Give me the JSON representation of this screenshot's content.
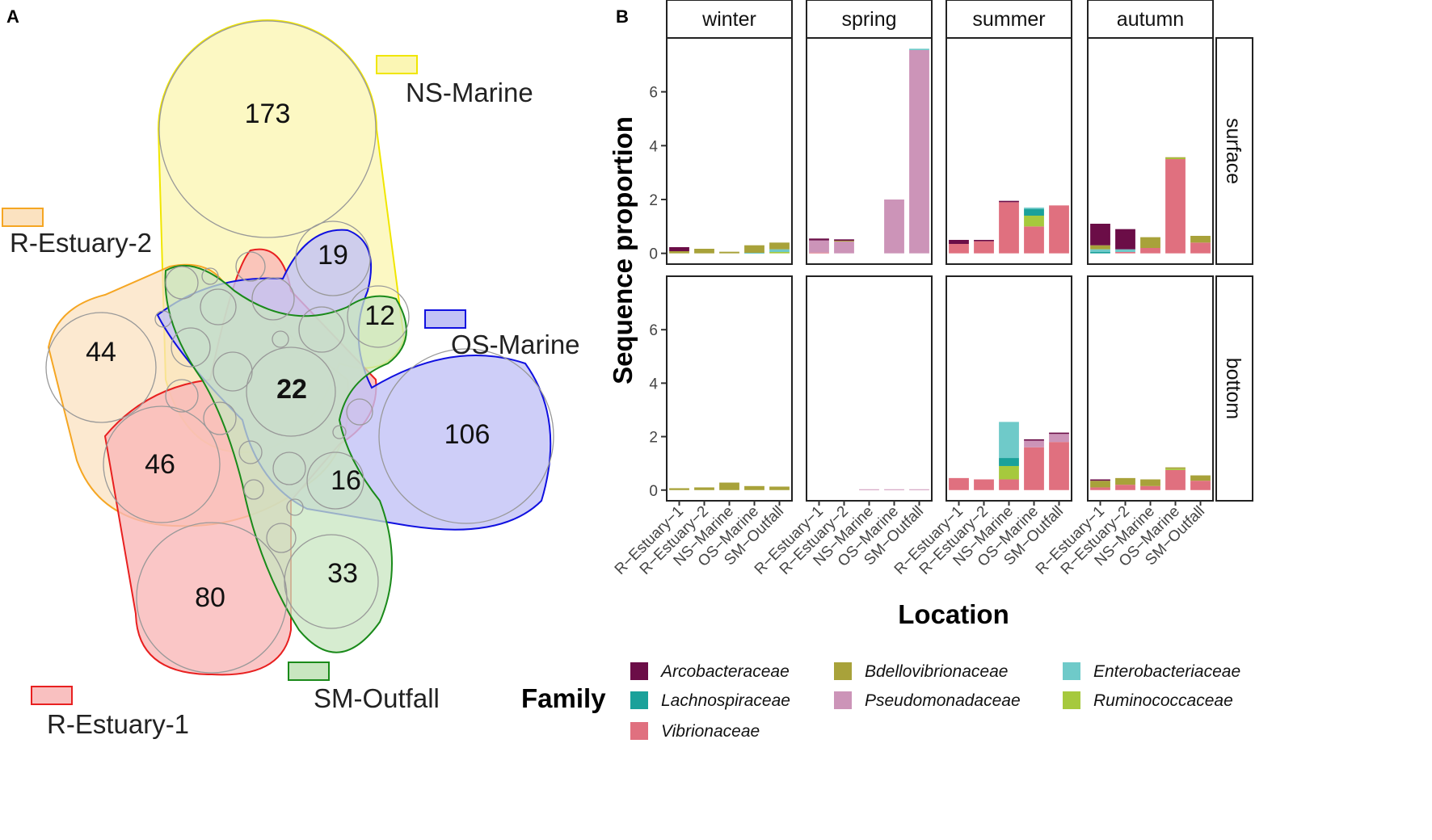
{
  "panel_a": {
    "tag": "A",
    "sets": [
      {
        "name": "NS-Marine",
        "color": "#f0e600",
        "fill": "#fbf6b4"
      },
      {
        "name": "R-Estuary-2",
        "color": "#f5a623",
        "fill": "#fbe2c0"
      },
      {
        "name": "OS-Marine",
        "color": "#1010e0",
        "fill": "#c2c2f6"
      },
      {
        "name": "SM-Outfall",
        "color": "#1a8a1a",
        "fill": "#c8e6c0"
      },
      {
        "name": "R-Estuary-1",
        "color": "#e82020",
        "fill": "#f9c0c0"
      }
    ],
    "counts": {
      "ns_only": "173",
      "re2_only": "44",
      "os_only": "106",
      "sm_only": "33",
      "re1_only": "80",
      "all": "22",
      "re1_re2": "46",
      "ns_os": "19",
      "sm_os_a": "12",
      "sm_os_b": "16"
    }
  },
  "chart_data": {
    "type": "bar",
    "stacked": true,
    "tag": "B",
    "xlabel": "Location",
    "ylabel": "Sequence proportion",
    "ylim": [
      -0.4,
      8.0
    ],
    "yticks": [
      0,
      2,
      4,
      6
    ],
    "facet_cols": [
      "winter",
      "spring",
      "summer",
      "autumn"
    ],
    "facet_rows": [
      "surface",
      "bottom"
    ],
    "categories": [
      "R−Estuary−1",
      "R−Estuary−2",
      "NS−Marine",
      "OS−Marine",
      "SM−Outfall"
    ],
    "legend_title": "Family",
    "families": [
      {
        "name": "Vibrionaceae",
        "color": "#e0707f"
      },
      {
        "name": "Ruminococcaceae",
        "color": "#a6c93d"
      },
      {
        "name": "Pseudomonadaceae",
        "color": "#cc94b8"
      },
      {
        "name": "Lachnospiraceae",
        "color": "#1aa19a"
      },
      {
        "name": "Enterobacteriaceae",
        "color": "#6fcac9"
      },
      {
        "name": "Bdellovibrionaceae",
        "color": "#a8a23a"
      },
      {
        "name": "Arcobacteraceae",
        "color": "#6b0d47"
      }
    ],
    "legend_order": [
      "Arcobacteraceae",
      "Bdellovibrionaceae",
      "Enterobacteriaceae",
      "Lachnospiraceae",
      "Pseudomonadaceae",
      "Ruminococcaceae",
      "Vibrionaceae"
    ],
    "values": {
      "surface": {
        "winter": {
          "Vibrionaceae": [
            0,
            0,
            0,
            0,
            0
          ],
          "Ruminococcaceae": [
            0,
            0,
            0,
            0,
            0.05
          ],
          "Pseudomonadaceae": [
            0,
            0,
            0,
            0,
            0
          ],
          "Lachnospiraceae": [
            0,
            0,
            0,
            0,
            0
          ],
          "Enterobacteriaceae": [
            0,
            0,
            0,
            0.02,
            0.1
          ],
          "Bdellovibrionaceae": [
            0.08,
            0.17,
            0.06,
            0.28,
            0.25
          ],
          "Arcobacteraceae": [
            0.15,
            0,
            0,
            0,
            0
          ]
        },
        "spring": {
          "Vibrionaceae": [
            0.03,
            0,
            0,
            0,
            0
          ],
          "Ruminococcaceae": [
            0,
            0,
            0,
            0,
            0
          ],
          "Pseudomonadaceae": [
            0.45,
            0.45,
            0,
            2.0,
            7.55
          ],
          "Lachnospiraceae": [
            0,
            0,
            0,
            0,
            0
          ],
          "Enterobacteriaceae": [
            0,
            0,
            0,
            0,
            0.05
          ],
          "Bdellovibrionaceae": [
            0,
            0.02,
            0,
            0,
            0
          ],
          "Arcobacteraceae": [
            0.07,
            0.05,
            0,
            0,
            0
          ]
        },
        "summer": {
          "Vibrionaceae": [
            0.35,
            0.45,
            1.9,
            1.0,
            1.78
          ],
          "Ruminococcaceae": [
            0,
            0,
            0,
            0.4,
            0
          ],
          "Pseudomonadaceae": [
            0,
            0,
            0,
            0,
            0
          ],
          "Lachnospiraceae": [
            0,
            0,
            0,
            0.25,
            0
          ],
          "Enterobacteriaceae": [
            0,
            0,
            0,
            0.05,
            0
          ],
          "Bdellovibrionaceae": [
            0,
            0,
            0,
            0,
            0
          ],
          "Arcobacteraceae": [
            0.15,
            0.05,
            0.05,
            0,
            0
          ]
        },
        "autumn": {
          "Vibrionaceae": [
            0,
            0.05,
            0.2,
            3.5,
            0.4
          ],
          "Ruminococcaceae": [
            0,
            0,
            0,
            0.05,
            0
          ],
          "Pseudomonadaceae": [
            0,
            0,
            0,
            0,
            0
          ],
          "Lachnospiraceae": [
            0.05,
            0,
            0,
            0,
            0
          ],
          "Enterobacteriaceae": [
            0.1,
            0.1,
            0,
            0,
            0
          ],
          "Bdellovibrionaceae": [
            0.15,
            0,
            0.4,
            0.02,
            0.25
          ],
          "Arcobacteraceae": [
            0.8,
            0.75,
            0,
            0,
            0
          ]
        }
      },
      "bottom": {
        "winter": {
          "Vibrionaceae": [
            0,
            0,
            0,
            0,
            0
          ],
          "Ruminococcaceae": [
            0,
            0,
            0,
            0,
            0
          ],
          "Pseudomonadaceae": [
            0,
            0,
            0,
            0,
            0
          ],
          "Lachnospiraceae": [
            0,
            0,
            0,
            0,
            0
          ],
          "Enterobacteriaceae": [
            0,
            0,
            0,
            0,
            0
          ],
          "Bdellovibrionaceae": [
            0.07,
            0.1,
            0.28,
            0.15,
            0.13
          ],
          "Arcobacteraceae": [
            0,
            0,
            0,
            0,
            0
          ]
        },
        "spring": {
          "Vibrionaceae": [
            0,
            0,
            0,
            0,
            0
          ],
          "Ruminococcaceae": [
            0,
            0,
            0,
            0,
            0
          ],
          "Pseudomonadaceae": [
            0,
            0,
            0.03,
            0.03,
            0.03
          ],
          "Lachnospiraceae": [
            0,
            0,
            0,
            0,
            0
          ],
          "Enterobacteriaceae": [
            0,
            0,
            0,
            0,
            0
          ],
          "Bdellovibrionaceae": [
            0,
            0,
            0,
            0,
            0
          ],
          "Arcobacteraceae": [
            0,
            0,
            0,
            0,
            0
          ]
        },
        "summer": {
          "Vibrionaceae": [
            0.45,
            0.4,
            0.4,
            1.6,
            1.8
          ],
          "Ruminococcaceae": [
            0,
            0,
            0.5,
            0,
            0
          ],
          "Pseudomonadaceae": [
            0,
            0,
            0,
            0.25,
            0.3
          ],
          "Lachnospiraceae": [
            0,
            0,
            0.3,
            0,
            0
          ],
          "Enterobacteriaceae": [
            0,
            0,
            1.35,
            0,
            0
          ],
          "Bdellovibrionaceae": [
            0,
            0,
            0,
            0,
            0
          ],
          "Arcobacteraceae": [
            0,
            0,
            0,
            0.05,
            0.05
          ]
        },
        "autumn": {
          "Vibrionaceae": [
            0.1,
            0.2,
            0.15,
            0.75,
            0.35
          ],
          "Ruminococcaceae": [
            0,
            0,
            0,
            0.05,
            0
          ],
          "Pseudomonadaceae": [
            0,
            0,
            0,
            0,
            0
          ],
          "Lachnospiraceae": [
            0,
            0,
            0,
            0,
            0
          ],
          "Enterobacteriaceae": [
            0,
            0,
            0,
            0,
            0
          ],
          "Bdellovibrionaceae": [
            0.25,
            0.25,
            0.25,
            0.05,
            0.2
          ],
          "Arcobacteraceae": [
            0.05,
            0,
            0,
            0,
            0
          ]
        }
      }
    }
  }
}
